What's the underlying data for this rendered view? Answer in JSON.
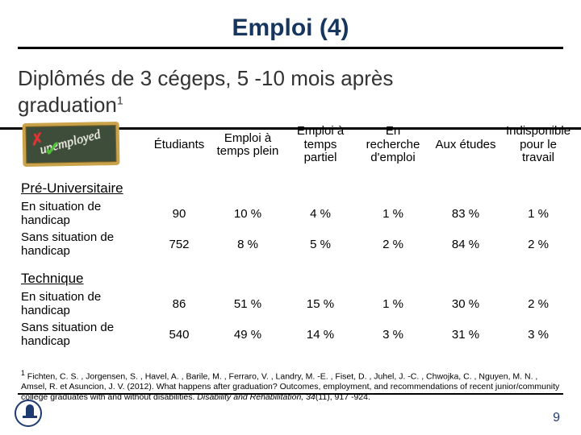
{
  "title": "Emploi (4)",
  "subtitle_line1": "Diplômés de 3 cégeps, 5 -10 mois après",
  "subtitle_line2_prefix": "graduation",
  "subtitle_sup": "1",
  "chalk_text": "unemployed",
  "columns": [
    "Étudiants",
    "Emploi à temps plein",
    "Emploi à temps partiel",
    "En recherche d'emploi",
    "Aux études",
    "Indisponible pour le travail"
  ],
  "sections": [
    {
      "label": "Pré-Universitaire",
      "rows": [
        {
          "label": "En situation de handicap",
          "values": [
            "90",
            "10 %",
            "4 %",
            "1 %",
            "83 %",
            "1 %"
          ]
        },
        {
          "label": "Sans situation de handicap",
          "values": [
            "752",
            "8 %",
            "5 %",
            "2 %",
            "84 %",
            "2 %"
          ]
        }
      ]
    },
    {
      "label": "Technique",
      "rows": [
        {
          "label": "En situation de handicap",
          "values": [
            "86",
            "51 %",
            "15 %",
            "1 %",
            "30 %",
            "2 %"
          ]
        },
        {
          "label": "Sans situation de handicap",
          "values": [
            "540",
            "49 %",
            "14 %",
            "3 %",
            "31 %",
            "3 %"
          ]
        }
      ]
    }
  ],
  "footnote_sup": "1",
  "footnote_text": " Fichten, C. S. , Jorgensen, S. , Havel, A. , Barile, M. , Ferraro, V. , Landry, M. -E. , Fiset, D. , Juhel, J. -C. , Chwojka, C. , Nguyen, M. N. , Amsel, R. et Asuncion, J. V. (2012). What happens after graduation? Outcomes, employment, and recommendations of recent junior/community college graduates with and without disabilities. ",
  "footnote_italic": "Disability and Rehabilitation, 34",
  "footnote_tail": "(11), 917 -924.",
  "page_number": "9",
  "style": {
    "title_color": "#17365d",
    "rule_color": "#000000",
    "chalk_bg": "#3e4d3a",
    "chalk_border": "#c9a24a",
    "chalk_text_color": "#f4f1e6",
    "x_color": "#d33333",
    "check_color": "#4fbf3a",
    "pagenum_color": "#1f3a6e",
    "font_sizes": {
      "title": 30,
      "subtitle": 26,
      "header": 15,
      "cell": 16,
      "footnote": 10.5
    }
  }
}
